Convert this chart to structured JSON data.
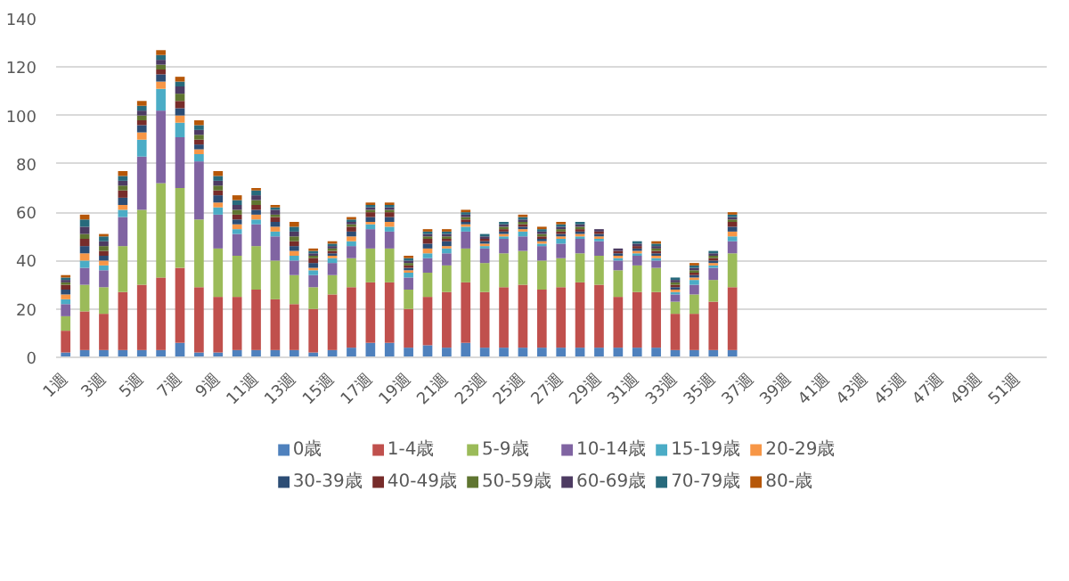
{
  "chart_data": {
    "type": "bar",
    "stacked": true,
    "categories": [
      "1週",
      null,
      "3週",
      null,
      "5週",
      null,
      "7週",
      null,
      "9週",
      null,
      "11週",
      null,
      "13週",
      null,
      "15週",
      null,
      "17週",
      null,
      "19週",
      null,
      "21週",
      null,
      "23週",
      null,
      "25週",
      null,
      "27週",
      null,
      "29週",
      null,
      "31週",
      null,
      "33週",
      null,
      "35週",
      null,
      "37週",
      null,
      "39週",
      null,
      "41週",
      null,
      "43週",
      null,
      "45週",
      null,
      "47週",
      null,
      "49週",
      null,
      "51週",
      null
    ],
    "ylim": [
      0,
      140
    ],
    "yticks": [
      0,
      20,
      40,
      60,
      80,
      100,
      120,
      140
    ],
    "grid": "y",
    "legend": "bottom",
    "series": [
      {
        "name": "0歳",
        "color": "#4f81bd",
        "values": [
          2,
          3,
          3,
          3,
          3,
          3,
          6,
          2,
          2,
          3,
          3,
          3,
          3,
          2,
          3,
          4,
          6,
          6,
          4,
          5,
          4,
          6,
          4,
          4,
          4,
          4,
          4,
          4,
          4,
          4,
          4,
          4,
          3,
          3,
          3,
          3,
          null,
          null,
          null,
          null,
          null,
          null,
          null,
          null,
          null,
          null,
          null,
          null,
          null,
          null,
          null,
          null
        ]
      },
      {
        "name": "1-4歳",
        "color": "#c0504d",
        "values": [
          9,
          16,
          15,
          24,
          27,
          30,
          31,
          27,
          23,
          22,
          25,
          21,
          19,
          18,
          23,
          25,
          25,
          25,
          16,
          20,
          23,
          25,
          23,
          25,
          26,
          24,
          25,
          27,
          26,
          21,
          23,
          23,
          15,
          15,
          20,
          26,
          null,
          null,
          null,
          null,
          null,
          null,
          null,
          null,
          null,
          null,
          null,
          null,
          null,
          null,
          null,
          null
        ]
      },
      {
        "name": "5-9歳",
        "color": "#9bbb59",
        "values": [
          6,
          11,
          11,
          19,
          31,
          39,
          33,
          28,
          20,
          17,
          18,
          16,
          12,
          9,
          8,
          12,
          14,
          14,
          8,
          10,
          11,
          14,
          12,
          14,
          14,
          12,
          12,
          12,
          12,
          11,
          11,
          10,
          5,
          8,
          9,
          14,
          null,
          null,
          null,
          null,
          null,
          null,
          null,
          null,
          null,
          null,
          null,
          null,
          null,
          null,
          null,
          null
        ]
      },
      {
        "name": "10-14歳",
        "color": "#8064a2",
        "values": [
          5,
          7,
          7,
          12,
          22,
          30,
          21,
          24,
          14,
          9,
          9,
          10,
          6,
          5,
          5,
          5,
          8,
          7,
          5,
          6,
          5,
          7,
          6,
          6,
          6,
          6,
          6,
          6,
          6,
          4,
          4,
          3,
          3,
          4,
          5,
          5,
          null,
          null,
          null,
          null,
          null,
          null,
          null,
          null,
          null,
          null,
          null,
          null,
          null,
          null,
          null,
          null
        ]
      },
      {
        "name": "15-19歳",
        "color": "#4bacc6",
        "values": [
          2,
          3,
          2,
          3,
          7,
          9,
          6,
          3,
          3,
          2,
          2,
          2,
          2,
          2,
          2,
          2,
          2,
          2,
          2,
          2,
          2,
          2,
          1,
          1,
          2,
          1,
          2,
          1,
          1,
          1,
          1,
          1,
          1,
          2,
          1,
          2,
          null,
          null,
          null,
          null,
          null,
          null,
          null,
          null,
          null,
          null,
          null,
          null,
          null,
          null,
          null,
          null
        ]
      },
      {
        "name": "20-29歳",
        "color": "#f79646",
        "values": [
          2,
          3,
          2,
          2,
          3,
          3,
          3,
          2,
          2,
          2,
          2,
          2,
          2,
          1,
          1,
          2,
          1,
          2,
          1,
          2,
          1,
          1,
          1,
          1,
          1,
          1,
          1,
          1,
          1,
          1,
          1,
          1,
          1,
          1,
          1,
          2,
          null,
          null,
          null,
          null,
          null,
          null,
          null,
          null,
          null,
          null,
          null,
          null,
          null,
          null,
          null,
          null
        ]
      },
      {
        "name": "30-39歳",
        "color": "#2c4d75",
        "values": [
          2,
          3,
          2,
          3,
          3,
          3,
          3,
          2,
          3,
          2,
          2,
          2,
          2,
          2,
          1,
          2,
          2,
          2,
          1,
          2,
          2,
          1,
          1,
          1,
          1,
          1,
          1,
          1,
          1,
          1,
          1,
          1,
          1,
          1,
          1,
          2,
          null,
          null,
          null,
          null,
          null,
          null,
          null,
          null,
          null,
          null,
          null,
          null,
          null,
          null,
          null,
          null
        ]
      },
      {
        "name": "40-49歳",
        "color": "#772c2a",
        "values": [
          2,
          3,
          2,
          3,
          2,
          2,
          3,
          2,
          2,
          2,
          2,
          2,
          2,
          2,
          1,
          2,
          2,
          2,
          1,
          2,
          1,
          1,
          1,
          1,
          1,
          1,
          1,
          1,
          1,
          1,
          1,
          1,
          1,
          1,
          1,
          2,
          null,
          null,
          null,
          null,
          null,
          null,
          null,
          null,
          null,
          null,
          null,
          null,
          null,
          null,
          null,
          null
        ]
      },
      {
        "name": "50-59歳",
        "color": "#5f7530",
        "values": [
          1,
          2,
          2,
          2,
          2,
          2,
          3,
          2,
          2,
          2,
          2,
          1,
          2,
          1,
          1,
          1,
          1,
          1,
          1,
          1,
          1,
          1,
          0,
          1,
          1,
          1,
          1,
          1,
          0,
          0,
          0,
          1,
          1,
          1,
          1,
          1,
          null,
          null,
          null,
          null,
          null,
          null,
          null,
          null,
          null,
          null,
          null,
          null,
          null,
          null,
          null,
          null
        ]
      },
      {
        "name": "60-69歳",
        "color": "#4d3b62",
        "values": [
          1,
          3,
          2,
          2,
          2,
          2,
          3,
          2,
          2,
          2,
          2,
          2,
          2,
          1,
          1,
          1,
          1,
          1,
          1,
          1,
          1,
          1,
          1,
          1,
          1,
          1,
          1,
          1,
          1,
          1,
          1,
          1,
          1,
          1,
          1,
          1,
          null,
          null,
          null,
          null,
          null,
          null,
          null,
          null,
          null,
          null,
          null,
          null,
          null,
          null,
          null,
          null
        ]
      },
      {
        "name": "70-79歳",
        "color": "#276a7c",
        "values": [
          1,
          3,
          2,
          2,
          2,
          2,
          2,
          2,
          2,
          2,
          2,
          1,
          2,
          1,
          1,
          1,
          1,
          1,
          1,
          1,
          1,
          1,
          1,
          1,
          1,
          1,
          1,
          1,
          0,
          0,
          1,
          1,
          1,
          1,
          1,
          1,
          null,
          null,
          null,
          null,
          null,
          null,
          null,
          null,
          null,
          null,
          null,
          null,
          null,
          null,
          null,
          null
        ]
      },
      {
        "name": "80-歳",
        "color": "#b65708",
        "values": [
          1,
          2,
          1,
          2,
          2,
          2,
          2,
          2,
          2,
          2,
          1,
          1,
          2,
          1,
          1,
          1,
          1,
          1,
          1,
          1,
          1,
          1,
          0,
          0,
          1,
          1,
          1,
          0,
          0,
          0,
          0,
          1,
          0,
          1,
          0,
          1,
          null,
          null,
          null,
          null,
          null,
          null,
          null,
          null,
          null,
          null,
          null,
          null,
          null,
          null,
          null,
          null
        ]
      }
    ]
  }
}
